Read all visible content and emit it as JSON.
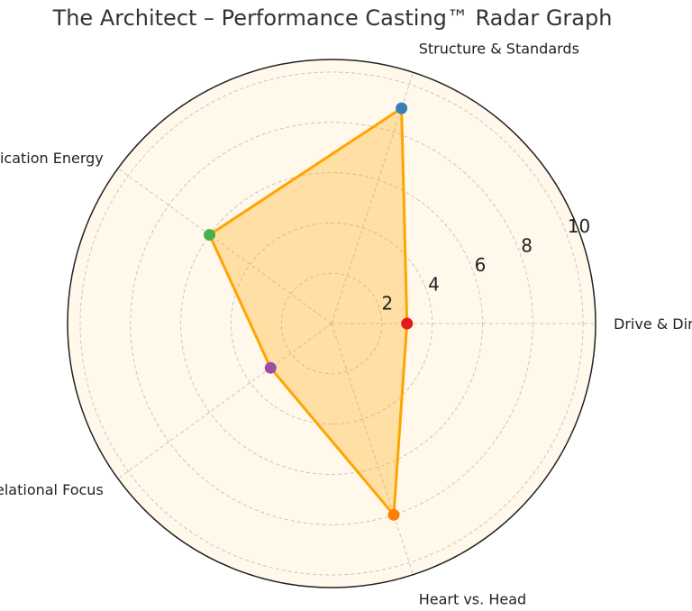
{
  "chart_data": {
    "type": "radar",
    "title": "The Architect – Performance Casting™ Radar Graph",
    "axes": [
      "Drive & Direction",
      "Structure & Standards",
      "Communication Energy",
      "Relational Focus",
      "Heart vs. Head"
    ],
    "values": [
      3,
      9,
      6,
      3,
      8
    ],
    "point_colors": [
      "#e41a1c",
      "#377eb8",
      "#4daf4a",
      "#984ea3",
      "#ff7f00"
    ],
    "line_color": "#ffa500",
    "fill_color": "#ffa500",
    "rlim": [
      0,
      10.5
    ],
    "rticks": [
      2,
      4,
      6,
      8,
      10
    ],
    "rtick_labels": [
      "2",
      "4",
      "6",
      "8",
      "10"
    ],
    "grid": true
  }
}
